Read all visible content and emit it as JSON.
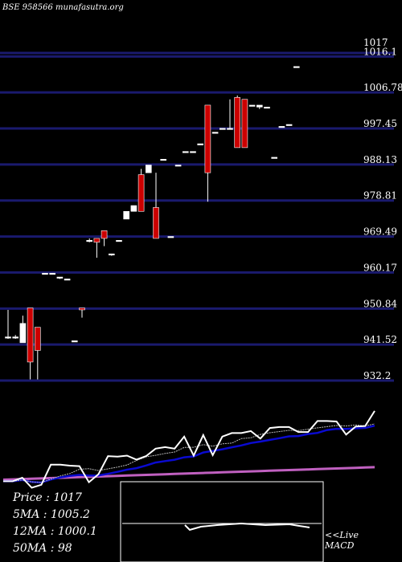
{
  "header": {
    "symbol_text": "BSE 958566",
    "site": "munafasutra.org"
  },
  "legend": {
    "price": "Price   :  1017",
    "ma5": "5MA : 1005.2",
    "ma12": "12MA : 1000.1",
    "ma50": "50MA : 98"
  },
  "macd_label": {
    "line1": "<<Live",
    "line2": "MACD"
  },
  "colors": {
    "up": "#ffffff",
    "down": "#cc0000",
    "grid": "#1a1a6e",
    "ma_blue": "#0a0ad0",
    "ma_magenta": "#c060c0",
    "price_line": "#ffffff"
  },
  "chart_data": {
    "type": "candlestick",
    "y_tick_labels": [
      "1017",
      "1016.1",
      "1006.78",
      "997.45",
      "988.13",
      "978.81",
      "969.49",
      "960.17",
      "950.84",
      "941.52",
      "932.2"
    ],
    "ylim": [
      932.2,
      1017
    ],
    "candles": [
      {
        "o": 943.5,
        "h": 950.5,
        "l": 943.0,
        "c": 943.5
      },
      {
        "o": 943.5,
        "h": 944.0,
        "l": 943.0,
        "c": 943.5
      },
      {
        "o": 942.0,
        "h": 949.0,
        "l": 942.0,
        "c": 947.0
      },
      {
        "o": 951.0,
        "h": 951.0,
        "l": 932.5,
        "c": 937.0
      },
      {
        "o": 946.0,
        "h": 946.0,
        "l": 932.5,
        "c": 940.0
      },
      {
        "o": 960.0,
        "h": 960.0,
        "l": 960.0,
        "c": 960.0
      },
      {
        "o": 960.0,
        "h": 960.0,
        "l": 960.0,
        "c": 960.0
      },
      {
        "o": 959.0,
        "h": 959.0,
        "l": 958.5,
        "c": 959.0
      },
      {
        "o": 958.5,
        "h": 958.5,
        "l": 958.5,
        "c": 958.5
      },
      {
        "o": 942.5,
        "h": 942.5,
        "l": 942.5,
        "c": 942.5
      },
      {
        "o": 951.0,
        "h": 951.0,
        "l": 948.5,
        "c": 950.5
      },
      {
        "o": 968.5,
        "h": 969.0,
        "l": 968.0,
        "c": 968.5
      },
      {
        "o": 969.0,
        "h": 969.0,
        "l": 964.0,
        "c": 968.0
      },
      {
        "o": 971.0,
        "h": 971.0,
        "l": 967.0,
        "c": 969.0
      },
      {
        "o": 965.0,
        "h": 965.0,
        "l": 964.5,
        "c": 965.0
      },
      {
        "o": 968.5,
        "h": 968.5,
        "l": 968.5,
        "c": 968.5
      },
      {
        "o": 974.0,
        "h": 976.0,
        "l": 974.0,
        "c": 976.0
      },
      {
        "o": 976.0,
        "h": 977.5,
        "l": 976.0,
        "c": 977.5
      },
      {
        "o": 985.5,
        "h": 987.0,
        "l": 976.0,
        "c": 976.0
      },
      {
        "o": 986.0,
        "h": 988.0,
        "l": 986.0,
        "c": 988.0
      },
      {
        "o": 977.0,
        "h": 986.0,
        "l": 969.0,
        "c": 969.0
      },
      {
        "o": 989.5,
        "h": 989.5,
        "l": 989.5,
        "c": 989.5
      },
      {
        "o": 969.5,
        "h": 969.5,
        "l": 969.5,
        "c": 969.5
      },
      {
        "o": 988.0,
        "h": 988.0,
        "l": 988.0,
        "c": 988.0
      },
      {
        "o": 991.5,
        "h": 991.5,
        "l": 991.5,
        "c": 991.5
      },
      {
        "o": 991.5,
        "h": 991.5,
        "l": 991.5,
        "c": 991.5
      },
      {
        "o": 993.5,
        "h": 993.5,
        "l": 993.5,
        "c": 993.5
      },
      {
        "o": 1003.5,
        "h": 1003.5,
        "l": 978.5,
        "c": 986.0
      },
      {
        "o": 996.5,
        "h": 996.5,
        "l": 996.5,
        "c": 996.5
      },
      {
        "o": 997.5,
        "h": 997.5,
        "l": 997.5,
        "c": 997.5
      },
      {
        "o": 997.5,
        "h": 1005.0,
        "l": 997.5,
        "c": 997.5
      },
      {
        "o": 1005.5,
        "h": 1006.0,
        "l": 992.5,
        "c": 992.5
      },
      {
        "o": 1005.0,
        "h": 1005.0,
        "l": 992.5,
        "c": 992.5
      },
      {
        "o": 1003.5,
        "h": 1003.5,
        "l": 1003.5,
        "c": 1003.5
      },
      {
        "o": 1003.0,
        "h": 1003.5,
        "l": 1002.5,
        "c": 1003.5
      },
      {
        "o": 1003.0,
        "h": 1003.0,
        "l": 1003.0,
        "c": 1003.0
      },
      {
        "o": 990.0,
        "h": 990.0,
        "l": 990.0,
        "c": 990.0
      },
      {
        "o": 998.0,
        "h": 998.0,
        "l": 998.0,
        "c": 998.0
      },
      {
        "o": 998.5,
        "h": 998.5,
        "l": 998.5,
        "c": 998.5
      },
      {
        "o": 1013.5,
        "h": 1013.5,
        "l": 1013.5,
        "c": 1013.5
      }
    ]
  }
}
